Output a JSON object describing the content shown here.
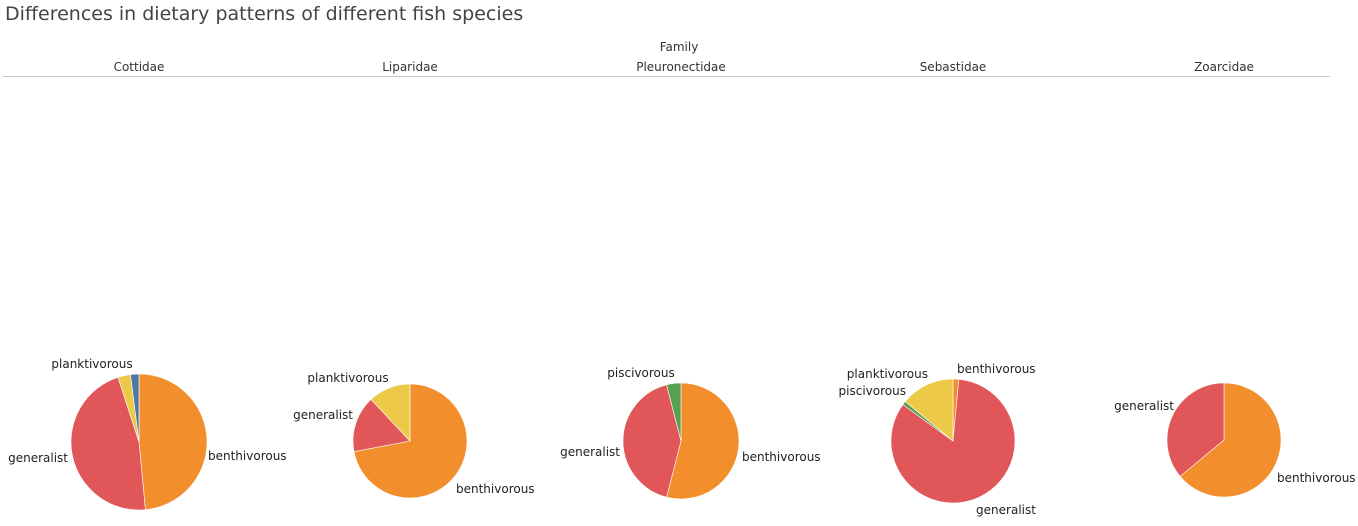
{
  "title": "Differences in dietary patterns of different fish species",
  "column_header": "Family",
  "colors": {
    "benthivorous": "#f28e2b",
    "generalist": "#e15759",
    "planktivorous": "#edc948",
    "piscivorous": "#59a14f",
    "other": "#4e79a7"
  },
  "chart_data": [
    {
      "type": "pie",
      "family": "Cottidae",
      "slices": [
        {
          "name": "benthivorous",
          "value": 48.5,
          "label": "benthivorous"
        },
        {
          "name": "generalist",
          "value": 46.5,
          "label": "generalist"
        },
        {
          "name": "planktivorous",
          "value": 3.0,
          "label": "planktivorous"
        },
        {
          "name": "other",
          "value": 2.0,
          "label": ""
        }
      ]
    },
    {
      "type": "pie",
      "family": "Liparidae",
      "slices": [
        {
          "name": "benthivorous",
          "value": 72.0,
          "label": "benthivorous"
        },
        {
          "name": "generalist",
          "value": 16.0,
          "label": "generalist"
        },
        {
          "name": "planktivorous",
          "value": 12.0,
          "label": "planktivorous"
        }
      ]
    },
    {
      "type": "pie",
      "family": "Pleuronectidae",
      "slices": [
        {
          "name": "benthivorous",
          "value": 54.0,
          "label": "benthivorous"
        },
        {
          "name": "generalist",
          "value": 42.0,
          "label": "generalist"
        },
        {
          "name": "piscivorous",
          "value": 4.0,
          "label": "piscivorous"
        }
      ]
    },
    {
      "type": "pie",
      "family": "Sebastidae",
      "slices": [
        {
          "name": "benthivorous",
          "value": 1.5,
          "label": "benthivorous"
        },
        {
          "name": "generalist",
          "value": 83.5,
          "label": "generalist"
        },
        {
          "name": "piscivorous",
          "value": 1.0,
          "label": "piscivorous"
        },
        {
          "name": "planktivorous",
          "value": 14.0,
          "label": "planktivorous"
        }
      ]
    },
    {
      "type": "pie",
      "family": "Zoarcidae",
      "slices": [
        {
          "name": "benthivorous",
          "value": 64.0,
          "label": "benthivorous"
        },
        {
          "name": "generalist",
          "value": 36.0,
          "label": "generalist"
        }
      ]
    }
  ]
}
